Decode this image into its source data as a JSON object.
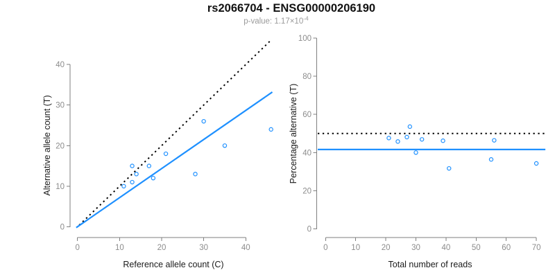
{
  "header": {
    "title": "rs2066704 - ENSG00000206190",
    "pvalue_prefix": "p-value: 1.17×10",
    "pvalue_exponent": "-4"
  },
  "colors": {
    "point_blue": "#1E90FF",
    "fit_line_blue": "#1E90FF",
    "dotted_black": "#000000",
    "axis_gray": "#7f7f7f",
    "tick_label_gray": "#8c8c8c"
  },
  "chart_data": [
    {
      "type": "scatter",
      "title": "",
      "xlabel": "Reference allele count (C)",
      "ylabel": "Alternative allele count (T)",
      "xticks": [
        0,
        10,
        20,
        30,
        40
      ],
      "yticks": [
        0,
        10,
        20,
        30,
        40
      ],
      "xlim": [
        -2,
        48
      ],
      "ylim": [
        -2,
        47
      ],
      "grid": false,
      "points": [
        [
          11,
          10
        ],
        [
          13,
          11
        ],
        [
          13,
          15
        ],
        [
          14,
          13
        ],
        [
          17,
          15
        ],
        [
          18,
          12
        ],
        [
          21,
          18
        ],
        [
          28,
          13
        ],
        [
          30,
          26
        ],
        [
          35,
          20
        ],
        [
          46,
          24
        ]
      ],
      "lines": [
        {
          "name": "identity-line",
          "style": "dotted",
          "color": "#000000",
          "x1": 0.4,
          "y1": 0.4,
          "x2": 46.0,
          "y2": 46.0,
          "width": 2
        },
        {
          "name": "fit-line",
          "style": "solid",
          "color": "#1E90FF",
          "x1": -0.3,
          "y1": -0.2,
          "x2": 46.3,
          "y2": 33.2,
          "width": 2.2
        }
      ]
    },
    {
      "type": "scatter",
      "title": "",
      "xlabel": "Total number of reads",
      "ylabel": "Percentage alternative (T)",
      "xticks": [
        0,
        10,
        20,
        30,
        40,
        50,
        60,
        70
      ],
      "yticks": [
        0,
        20,
        40,
        60,
        80,
        100
      ],
      "xlim": [
        -3,
        74
      ],
      "ylim": [
        -4,
        104
      ],
      "grid": false,
      "points": [
        [
          21,
          47.6
        ],
        [
          24,
          45.8
        ],
        [
          27,
          48.1
        ],
        [
          28,
          53.6
        ],
        [
          30,
          40.0
        ],
        [
          32,
          46.9
        ],
        [
          39,
          46.2
        ],
        [
          41,
          31.7
        ],
        [
          55,
          36.4
        ],
        [
          56,
          46.4
        ],
        [
          70,
          34.3
        ]
      ],
      "lines": [
        {
          "name": "expected-50pct-line",
          "style": "dotted",
          "color": "#000000",
          "x1": -2.6,
          "y1": 50,
          "x2": 73,
          "y2": 50,
          "width": 2
        },
        {
          "name": "estimated-pct-line",
          "style": "solid",
          "color": "#1E90FF",
          "x1": -2.6,
          "y1": 41.6,
          "x2": 73,
          "y2": 41.6,
          "width": 2.2
        }
      ]
    }
  ]
}
